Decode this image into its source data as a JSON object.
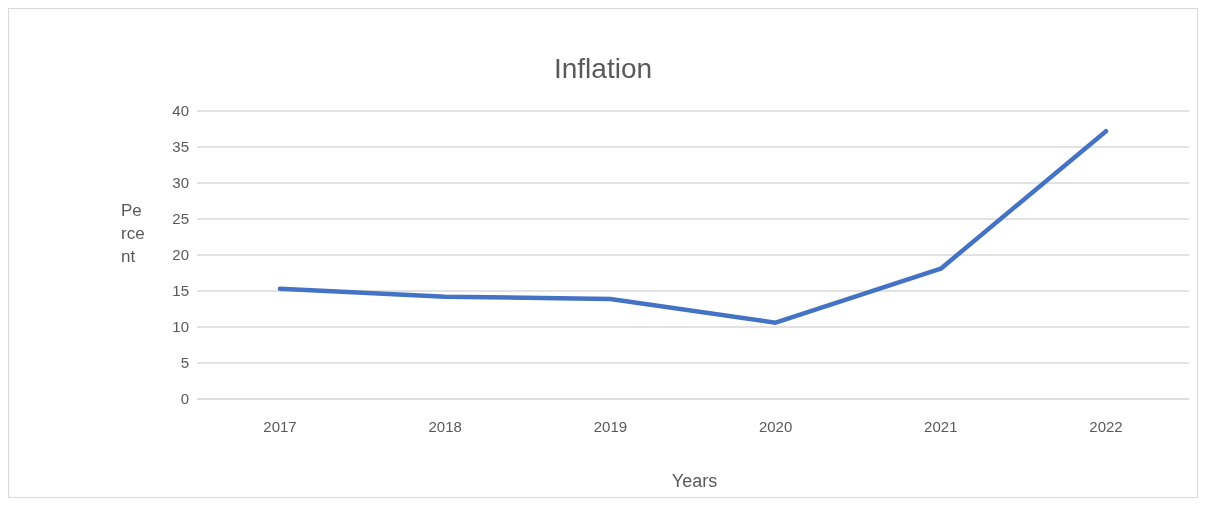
{
  "chart_data": {
    "type": "line",
    "title": "Inflation",
    "xlabel": "Years",
    "ylabel": "Percent",
    "categories": [
      "2017",
      "2018",
      "2019",
      "2020",
      "2021",
      "2022"
    ],
    "series": [
      {
        "color": "#4472c4",
        "values": [
          15.3,
          14.2,
          13.9,
          10.6,
          18.1,
          37.2
        ]
      }
    ],
    "ylim": [
      0,
      40
    ],
    "yticks": [
      0,
      5,
      10,
      15,
      20,
      25,
      30,
      35,
      40
    ],
    "grid": "y",
    "legend": false,
    "marker": "none",
    "line_style": "solid"
  }
}
